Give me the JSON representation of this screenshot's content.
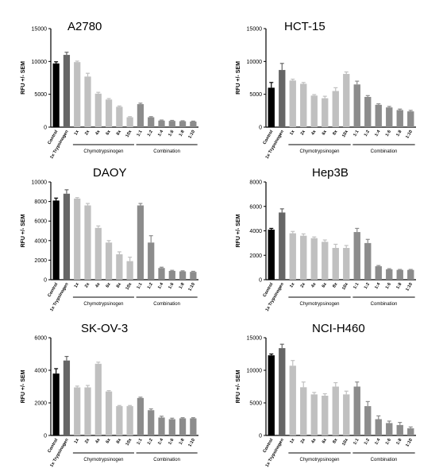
{
  "colors": {
    "control": "#000000",
    "trypsinogen": "#666666",
    "chymotrypsinogen": "#c0c0c0",
    "combination": "#8c8c8c"
  },
  "categories": [
    "Control",
    "1x Trypsinogen",
    "1x",
    "2x",
    "4x",
    "6x",
    "8x",
    "10x",
    "1:1",
    "1:2",
    "1:4",
    "1:6",
    "1:8",
    "1:10"
  ],
  "groups": [
    {
      "label": "Chymotrypsinogen",
      "from": 2,
      "to": 7
    },
    {
      "label": "Combination",
      "from": 8,
      "to": 13
    }
  ],
  "ylabel": "RFU +/- SEM",
  "chart_data": [
    {
      "type": "bar",
      "title": "A2780",
      "ylim": [
        0,
        15000
      ],
      "yticks": [
        0,
        5000,
        10000,
        15000
      ],
      "series": [
        {
          "values": [
            9700,
            11000,
            9900,
            7700,
            5100,
            4200,
            3100,
            1500,
            3500,
            1500,
            1000,
            950,
            900,
            850
          ],
          "errors": [
            250,
            400,
            150,
            500,
            200,
            150,
            120,
            100,
            150,
            100,
            80,
            80,
            70,
            70
          ]
        }
      ]
    },
    {
      "type": "bar",
      "title": "HCT-15",
      "ylim": [
        0,
        15000
      ],
      "yticks": [
        0,
        5000,
        10000,
        15000
      ],
      "series": [
        {
          "values": [
            6000,
            8700,
            7100,
            6600,
            4800,
            4400,
            5500,
            8100,
            6500,
            4600,
            3400,
            3000,
            2600,
            2400
          ],
          "errors": [
            800,
            1000,
            200,
            200,
            150,
            300,
            500,
            300,
            500,
            200,
            150,
            150,
            150,
            150
          ]
        }
      ]
    },
    {
      "type": "bar",
      "title": "DAOY",
      "ylim": [
        0,
        10000
      ],
      "yticks": [
        0,
        2000,
        4000,
        6000,
        8000,
        10000
      ],
      "series": [
        {
          "values": [
            8100,
            8800,
            8300,
            7600,
            5300,
            3800,
            2600,
            1900,
            7600,
            3800,
            1200,
            900,
            850,
            800
          ],
          "errors": [
            250,
            400,
            100,
            200,
            200,
            200,
            250,
            400,
            200,
            700,
            80,
            60,
            60,
            60
          ]
        }
      ]
    },
    {
      "type": "bar",
      "title": "Hep3B",
      "ylim": [
        0,
        8000
      ],
      "yticks": [
        0,
        2000,
        4000,
        6000,
        8000
      ],
      "series": [
        {
          "values": [
            4100,
            5500,
            3800,
            3600,
            3400,
            3100,
            2600,
            2600,
            3900,
            3000,
            1100,
            850,
            800,
            800
          ],
          "errors": [
            100,
            300,
            150,
            150,
            100,
            150,
            300,
            200,
            300,
            300,
            60,
            50,
            40,
            40
          ]
        }
      ]
    },
    {
      "type": "bar",
      "title": "SK-OV-3",
      "ylim": [
        0,
        6000
      ],
      "yticks": [
        0,
        2000,
        4000,
        6000
      ],
      "series": [
        {
          "values": [
            3800,
            4600,
            2950,
            2950,
            4400,
            2700,
            1800,
            1800,
            2300,
            1550,
            1100,
            1000,
            1050,
            1050
          ],
          "errors": [
            300,
            250,
            80,
            120,
            100,
            50,
            40,
            40,
            50,
            80,
            80,
            60,
            40,
            40
          ]
        }
      ]
    },
    {
      "type": "bar",
      "title": "NCI-H460",
      "ylim": [
        0,
        15000
      ],
      "yticks": [
        0,
        5000,
        10000,
        15000
      ],
      "series": [
        {
          "values": [
            12300,
            13400,
            10700,
            7400,
            6300,
            6100,
            7500,
            6300,
            7500,
            4500,
            2500,
            1900,
            1600,
            1100
          ],
          "errors": [
            200,
            600,
            800,
            800,
            300,
            300,
            600,
            500,
            700,
            700,
            500,
            300,
            400,
            200
          ]
        }
      ]
    }
  ]
}
